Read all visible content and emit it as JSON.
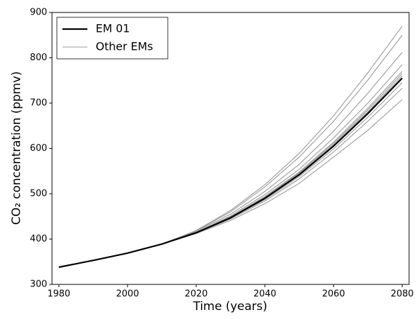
{
  "chart_data": {
    "type": "line",
    "xlabel": "Time (years)",
    "ylabel": "CO₂ concentration (ppmv)",
    "x": [
      1980,
      1990,
      2000,
      2010,
      2020,
      2030,
      2040,
      2050,
      2060,
      2070,
      2080
    ],
    "series": [
      {
        "name": "EM 01",
        "color": "#000000",
        "values": [
          338,
          353,
          369,
          389,
          414,
          447,
          490,
          542,
          605,
          677,
          755
        ]
      },
      {
        "name": "Other EMs",
        "color": "#999999",
        "values": [
          [
            338,
            353,
            369,
            389,
            419,
            463,
            520,
            589,
            672,
            767,
            870
          ],
          [
            338,
            353,
            369,
            389,
            418,
            460,
            515,
            581,
            660,
            751,
            850
          ],
          [
            338,
            353,
            369,
            389,
            417,
            455,
            505,
            565,
            638,
            722,
            812
          ],
          [
            338,
            353,
            369,
            389,
            415,
            451,
            498,
            554,
            623,
            700,
            785
          ],
          [
            338,
            353,
            369,
            389,
            415,
            449,
            494,
            548,
            614,
            689,
            770
          ],
          [
            338,
            353,
            369,
            389,
            414,
            448,
            493,
            546,
            611,
            685,
            765
          ],
          [
            338,
            353,
            369,
            389,
            414,
            448,
            491,
            544,
            608,
            681,
            760
          ],
          [
            338,
            353,
            369,
            389,
            414,
            446,
            487,
            538,
            599,
            669,
            745
          ],
          [
            338,
            353,
            369,
            389,
            413,
            444,
            484,
            533,
            592,
            660,
            733
          ],
          [
            338,
            353,
            369,
            389,
            412,
            441,
            478,
            523,
            581,
            640,
            708
          ]
        ]
      }
    ],
    "xlim": [
      1978,
      2082
    ],
    "xticks": [
      1980,
      2000,
      2020,
      2040,
      2060,
      2080
    ],
    "ylim": [
      300,
      900
    ],
    "yticks": [
      300,
      400,
      500,
      600,
      700,
      800,
      900
    ],
    "legend": "upper left",
    "grid": false
  }
}
